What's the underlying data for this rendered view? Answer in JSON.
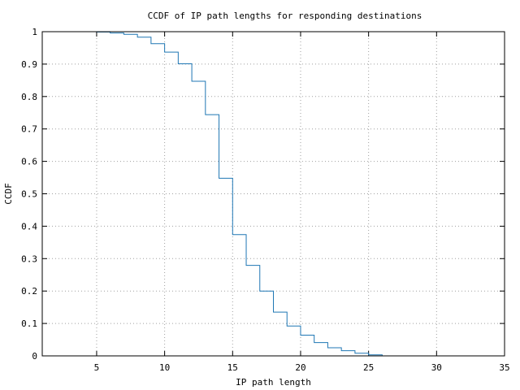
{
  "chart_data": {
    "type": "line",
    "step": true,
    "title": "CCDF of IP path lengths for responding destinations",
    "xlabel": "IP path length",
    "ylabel": "CCDF",
    "xlim": [
      1,
      35
    ],
    "ylim": [
      0,
      1
    ],
    "xticks": [
      5,
      10,
      15,
      20,
      25,
      30,
      35
    ],
    "xtick_labels": [
      "5",
      "10",
      "15",
      "20",
      "25",
      "30",
      "35"
    ],
    "yticks": [
      0,
      0.1,
      0.2,
      0.3,
      0.4,
      0.5,
      0.6,
      0.7,
      0.8,
      0.9,
      1
    ],
    "ytick_labels": [
      "0",
      "0.1",
      "0.2",
      "0.3",
      "0.4",
      "0.5",
      "0.6",
      "0.7",
      "0.8",
      "0.9",
      "1"
    ],
    "grid": true,
    "legend": "none",
    "color": "#1f77b4",
    "series": [
      {
        "x": [
          5,
          6,
          7,
          8,
          9,
          10,
          11,
          12,
          13,
          14,
          15,
          16,
          17,
          18,
          19,
          20,
          21,
          22,
          23,
          24,
          25,
          26
        ],
        "y": [
          0.999,
          0.996,
          0.992,
          0.983,
          0.963,
          0.937,
          0.901,
          0.847,
          0.744,
          0.548,
          0.374,
          0.279,
          0.2,
          0.135,
          0.092,
          0.064,
          0.041,
          0.025,
          0.016,
          0.008,
          0.003,
          0.0
        ]
      }
    ]
  }
}
